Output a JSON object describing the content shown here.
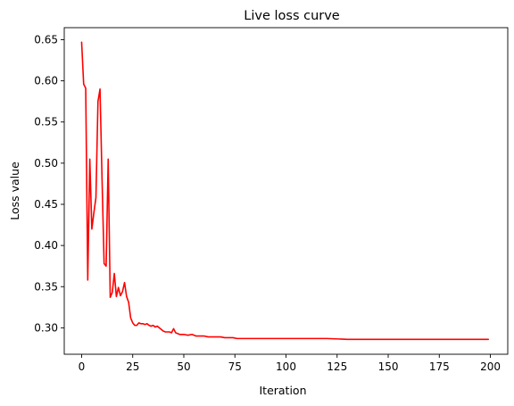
{
  "chart_data": {
    "type": "line",
    "title": "Live loss curve",
    "xlabel": "Iteration",
    "ylabel": "Loss value",
    "xlim": [
      -8.5,
      208.5
    ],
    "ylim": [
      0.2679,
      0.6646
    ],
    "xticks": [
      0,
      25,
      50,
      75,
      100,
      125,
      150,
      175,
      200
    ],
    "yticks": [
      0.3,
      0.35,
      0.4,
      0.45,
      0.5,
      0.55,
      0.6,
      0.65
    ],
    "ytick_labels": [
      "0.30",
      "0.35",
      "0.40",
      "0.45",
      "0.50",
      "0.55",
      "0.60",
      "0.65"
    ],
    "grid": false,
    "line_color": "#ff0000",
    "series": [
      {
        "x": [
          0,
          1,
          2,
          3,
          4,
          5,
          6,
          7,
          8,
          9,
          10,
          11,
          12,
          13,
          14,
          15,
          16,
          17,
          18,
          19,
          20,
          21,
          22,
          23,
          24,
          25,
          26,
          27,
          28,
          29,
          30,
          31,
          32,
          33,
          34,
          35,
          36,
          37,
          38,
          39,
          40,
          41,
          42,
          43,
          44,
          45,
          46,
          47,
          48,
          49,
          50,
          52,
          54,
          56,
          58,
          60,
          62,
          64,
          66,
          68,
          70,
          72,
          74,
          76,
          78,
          80,
          85,
          90,
          95,
          100,
          110,
          120,
          130,
          140,
          150,
          160,
          170,
          180,
          190,
          199
        ],
        "values": [
          0.647,
          0.596,
          0.591,
          0.358,
          0.505,
          0.42,
          0.44,
          0.458,
          0.575,
          0.59,
          0.48,
          0.378,
          0.375,
          0.505,
          0.337,
          0.343,
          0.366,
          0.338,
          0.349,
          0.339,
          0.344,
          0.355,
          0.338,
          0.331,
          0.312,
          0.306,
          0.303,
          0.303,
          0.306,
          0.305,
          0.305,
          0.304,
          0.305,
          0.303,
          0.302,
          0.303,
          0.301,
          0.302,
          0.3,
          0.298,
          0.296,
          0.295,
          0.295,
          0.295,
          0.294,
          0.299,
          0.294,
          0.293,
          0.292,
          0.292,
          0.292,
          0.291,
          0.292,
          0.29,
          0.29,
          0.29,
          0.289,
          0.289,
          0.289,
          0.289,
          0.288,
          0.288,
          0.288,
          0.287,
          0.287,
          0.287,
          0.287,
          0.287,
          0.287,
          0.287,
          0.287,
          0.287,
          0.286,
          0.286,
          0.286,
          0.286,
          0.286,
          0.286,
          0.286,
          0.286
        ]
      }
    ]
  }
}
